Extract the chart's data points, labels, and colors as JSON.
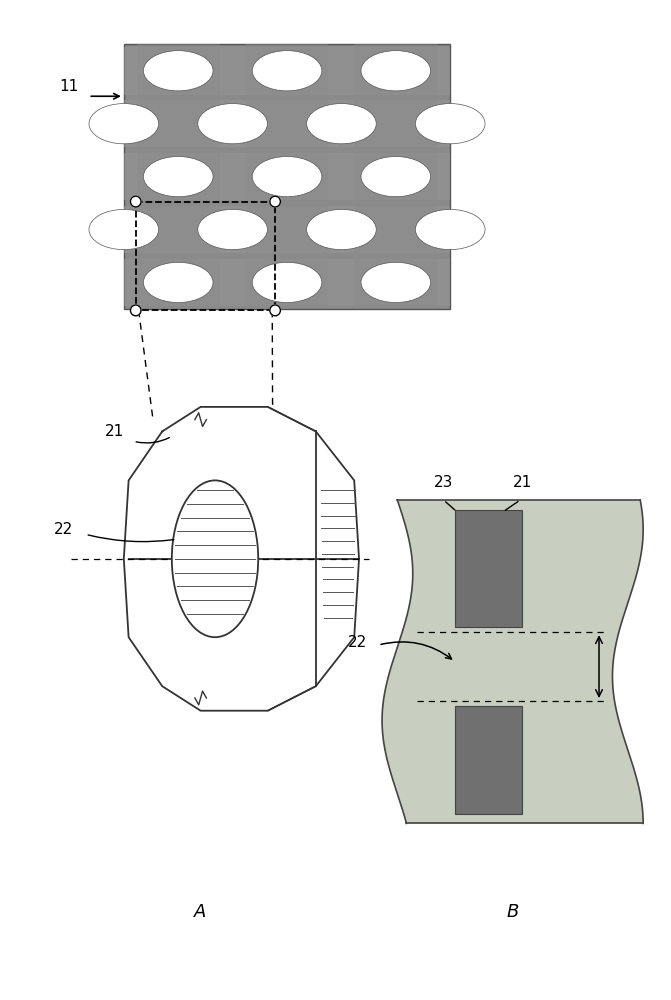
{
  "bg_color": "#ffffff",
  "grid_bg": "#8a8a8a",
  "grid_band_light": "#a0a0a0",
  "grid_band_dark": "#787878",
  "circle_color": "#ffffff",
  "prism_fill": "#ffffff",
  "prism_line": "#333333",
  "block_fill": "#707070",
  "block_edge": "#444444",
  "body_fill": "#c8cec0",
  "body_edge": "#444444",
  "dashed_color": "#222222",
  "label_11": "11",
  "label_21_a": "21",
  "label_22_a": "22",
  "label_21_b": "21",
  "label_22_b": "22",
  "label_23_b": "23",
  "label_A": "A",
  "label_B": "B"
}
